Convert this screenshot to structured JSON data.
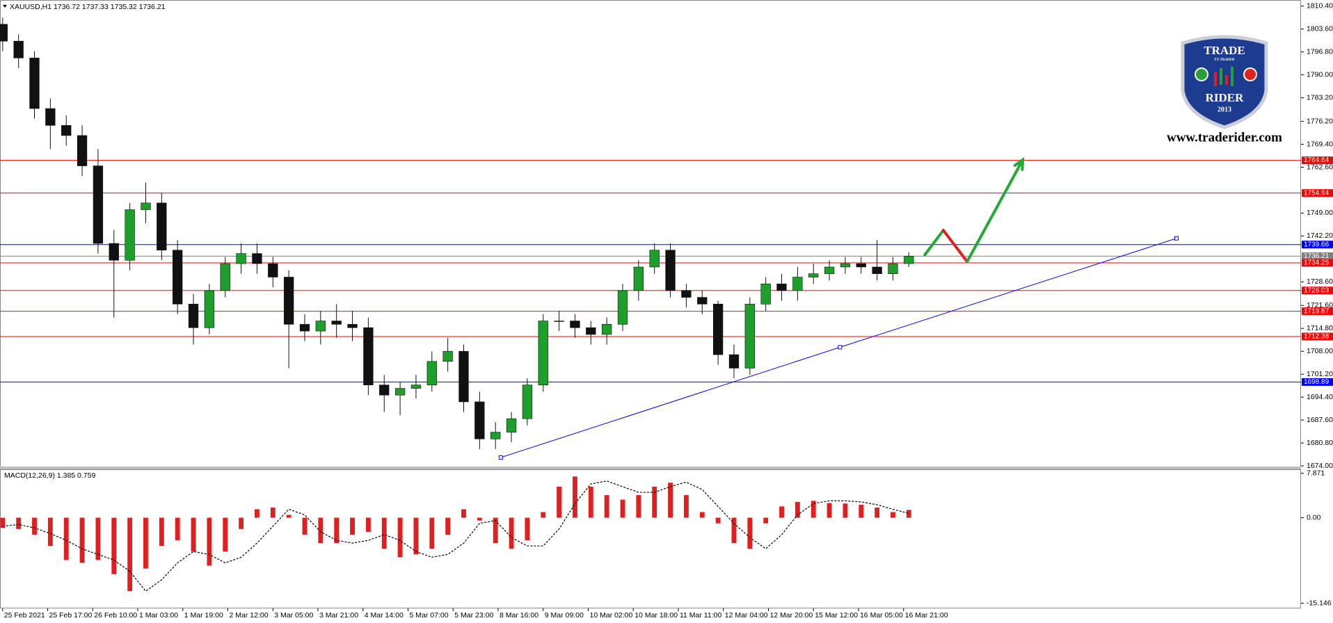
{
  "chart_data": [
    {
      "type": "candlestick",
      "title": "XAUUSD,H1  1736.72 1737.33 1735.32 1736.21",
      "x": [
        0,
        6,
        12,
        18,
        24,
        30,
        36,
        42,
        48,
        54,
        60,
        66,
        72,
        78,
        84,
        90,
        96,
        102,
        108,
        114,
        120,
        126,
        132,
        138,
        144,
        150,
        156,
        162,
        168,
        174,
        180,
        186,
        192,
        198,
        204,
        210,
        216,
        222,
        228,
        234,
        240,
        246,
        252,
        258,
        264,
        270,
        276,
        282,
        288,
        294,
        300,
        306,
        312,
        318,
        324,
        330,
        336,
        342
      ],
      "open": [
        1805,
        1800,
        1795,
        1780,
        1775,
        1772,
        1763,
        1740,
        1735,
        1750,
        1752,
        1738,
        1722,
        1715,
        1726,
        1734,
        1737,
        1734,
        1730,
        1716,
        1714,
        1717,
        1716,
        1715,
        1698,
        1695,
        1697,
        1698,
        1705,
        1708,
        1693,
        1682,
        1684,
        1688,
        1698,
        1717,
        1717,
        1715,
        1713,
        1716,
        1726,
        1733,
        1738,
        1726,
        1724,
        1722,
        1707,
        1703,
        1722,
        1728,
        1726,
        1730,
        1731,
        1733,
        1734,
        1733,
        1731,
        1734
      ],
      "high": [
        1807,
        1802,
        1797,
        1783,
        1778,
        1775,
        1768,
        1744,
        1752,
        1758,
        1755,
        1741,
        1725,
        1728,
        1736,
        1740,
        1740,
        1736,
        1732,
        1719,
        1720,
        1722,
        1720,
        1718,
        1701,
        1699,
        1701,
        1708,
        1712,
        1710,
        1696,
        1687,
        1690,
        1700,
        1719,
        1720,
        1719,
        1717,
        1718,
        1728,
        1735,
        1740,
        1740,
        1728,
        1726,
        1723,
        1710,
        1724,
        1730,
        1731,
        1733,
        1734,
        1735,
        1736,
        1736,
        1741,
        1736,
        1737.33
      ],
      "low": [
        1797,
        1792,
        1777,
        1768,
        1769,
        1760,
        1737,
        1718,
        1732,
        1746,
        1735,
        1719,
        1710,
        1713,
        1724,
        1731,
        1731,
        1727,
        1703,
        1711,
        1710,
        1712,
        1711,
        1695,
        1690,
        1689,
        1694,
        1696,
        1702,
        1690,
        1679,
        1679,
        1681,
        1686,
        1696,
        1714,
        1712,
        1710,
        1710,
        1714,
        1723,
        1731,
        1724,
        1721,
        1719,
        1704,
        1700,
        1701,
        1720,
        1723,
        1723,
        1728,
        1729,
        1731,
        1731,
        1729,
        1729,
        1733
      ],
      "close": [
        1800,
        1795,
        1780,
        1775,
        1772,
        1763,
        1740,
        1735,
        1750,
        1752,
        1738,
        1722,
        1715,
        1726,
        1734,
        1737,
        1734,
        1730,
        1716,
        1714,
        1717,
        1716,
        1715,
        1698,
        1695,
        1697,
        1698,
        1705,
        1708,
        1693,
        1682,
        1684,
        1688,
        1698,
        1717,
        1717,
        1715,
        1713,
        1716,
        1726,
        1733,
        1738,
        1726,
        1724,
        1722,
        1707,
        1703,
        1722,
        1728,
        1726,
        1730,
        1731,
        1733,
        1734,
        1733,
        1731,
        1734,
        1736.21
      ],
      "up_color": "#1e9e2a",
      "down_color": "#111111",
      "xlim": [
        -1,
        490
      ],
      "ylim": [
        1673.6,
        1812.2
      ],
      "yticks": [
        {
          "value": 1810.4,
          "label": "1810.40"
        },
        {
          "value": 1803.6,
          "label": "1803.60"
        },
        {
          "value": 1796.8,
          "label": "1796.80"
        },
        {
          "value": 1790,
          "label": "1790.00"
        },
        {
          "value": 1783.2,
          "label": "1783.20"
        },
        {
          "value": 1776.2,
          "label": "1776.20"
        },
        {
          "value": 1769.4,
          "label": "1769.40"
        },
        {
          "value": 1762.6,
          "label": "1762.60"
        },
        {
          "value": 1749,
          "label": "1749.00"
        },
        {
          "value": 1742.2,
          "label": "1742.20"
        },
        {
          "value": 1728.6,
          "label": "1728.60"
        },
        {
          "value": 1721.6,
          "label": "1721.60"
        },
        {
          "value": 1714.8,
          "label": "1714.80"
        },
        {
          "value": 1708,
          "label": "1708.00"
        },
        {
          "value": 1701.2,
          "label": "1701.20"
        },
        {
          "value": 1694.4,
          "label": "1694.40"
        },
        {
          "value": 1687.6,
          "label": "1687.60"
        },
        {
          "value": 1680.8,
          "label": "1680.80"
        },
        {
          "value": 1674,
          "label": "1674.00"
        }
      ],
      "levels": [
        {
          "value": 1764.64,
          "color": "#ff0000"
        },
        {
          "value": 1754.94,
          "color": "#ff0000"
        },
        {
          "value": 1739.66,
          "color": "#0000ff"
        },
        {
          "value": 1736.21,
          "color": "#808080"
        },
        {
          "value": 1734.25,
          "color": "#ff0000"
        },
        {
          "value": 1726.03,
          "color": "#ff0000"
        },
        {
          "value": 1719.87,
          "color": "#ff0000"
        },
        {
          "value": 1712.38,
          "color": "#ff0000"
        },
        {
          "value": 1698.89,
          "color": "#0000ff"
        }
      ],
      "trendline": {
        "x": [
          188,
          316,
          443
        ],
        "y": [
          1676.5,
          1709.2,
          1741.5
        ],
        "color": "#0000ff"
      },
      "projection": {
        "x": [
          348,
          355,
          364,
          385
        ],
        "y": [
          1736.6,
          1743.9,
          1734.6,
          1764.8
        ],
        "colors": [
          "#22aa33",
          "#e02020",
          "#22aa33"
        ]
      },
      "logo": {
        "top": "TRADE",
        "tag": "FX TRADER",
        "name": "RIDER",
        "year": "2013",
        "site": "www.traderider.com"
      }
    },
    {
      "type": "macd",
      "title": "MACD(12,26,9) 1.385 0.759",
      "x": [
        0,
        6,
        12,
        18,
        24,
        30,
        36,
        42,
        48,
        54,
        60,
        66,
        72,
        78,
        84,
        90,
        96,
        102,
        108,
        114,
        120,
        126,
        132,
        138,
        144,
        150,
        156,
        162,
        168,
        174,
        180,
        186,
        192,
        198,
        204,
        210,
        216,
        222,
        228,
        234,
        240,
        246,
        252,
        258,
        264,
        270,
        276,
        282,
        288,
        294,
        300,
        306,
        312,
        318,
        324,
        330,
        336,
        342
      ],
      "series": [
        {
          "name": "MACD",
          "color": "#e02020",
          "values": [
            -1.8,
            -2,
            -3,
            -5,
            -7.5,
            -8,
            -7.5,
            -10,
            -13,
            -9,
            -5,
            -4,
            -6,
            -8.5,
            -6,
            -2,
            1.5,
            1.8,
            0.5,
            -3,
            -4.5,
            -4.5,
            -3,
            -2.5,
            -5.5,
            -7,
            -6.5,
            -5.5,
            -3,
            1.5,
            -0.5,
            -4.5,
            -5.5,
            -4,
            1,
            5.5,
            7.3,
            5.5,
            4,
            3.2,
            4,
            5.5,
            6.2,
            4,
            1,
            -1,
            -4.5,
            -5.5,
            -1,
            2,
            2.8,
            3,
            2.6,
            2.5,
            2.3,
            1.8,
            1,
            1.385
          ]
        },
        {
          "name": "Signal",
          "color": "#000000",
          "values": [
            -1.5,
            -1.2,
            -1.8,
            -2.8,
            -4,
            -5.5,
            -6.5,
            -7.5,
            -9.5,
            -13,
            -11,
            -8,
            -6,
            -6.5,
            -8,
            -7,
            -4.5,
            -1.5,
            1.5,
            0.5,
            -2.5,
            -4,
            -4.5,
            -4,
            -3,
            -4,
            -6,
            -7,
            -6.5,
            -4.5,
            -1,
            -0.5,
            -3.5,
            -5,
            -5,
            -2,
            2.5,
            6,
            6.5,
            5.5,
            4.5,
            4.5,
            5.5,
            6.3,
            5,
            2,
            -1,
            -3.5,
            -5.5,
            -3,
            0.5,
            2.5,
            3,
            3,
            2.8,
            2.3,
            1.5,
            0.759
          ]
        }
      ],
      "xlim": [
        -1,
        490
      ],
      "ylim": [
        -16.06,
        8.57
      ],
      "yticks": [
        7.871,
        {
          "value": 0,
          "label": "0.00"
        },
        -15.146
      ],
      "xticks": [
        {
          "value": 0,
          "label": "25 Feb 2021"
        },
        {
          "value": 17,
          "label": "25 Feb 17:00"
        },
        {
          "value": 34,
          "label": "26 Feb 10:00"
        },
        {
          "value": 51,
          "label": "1 Mar 03:00"
        },
        {
          "value": 68,
          "label": "1 Mar 19:00"
        },
        {
          "value": 85,
          "label": "2 Mar 12:00"
        },
        {
          "value": 102,
          "label": "3 Mar 05:00"
        },
        {
          "value": 119,
          "label": "3 Mar 21:00"
        },
        {
          "value": 136,
          "label": "4 Mar 14:00"
        },
        {
          "value": 153,
          "label": "5 Mar 07:00"
        },
        {
          "value": 170,
          "label": "5 Mar 23:00"
        },
        {
          "value": 187,
          "label": "8 Mar 16:00"
        },
        {
          "value": 204,
          "label": "9 Mar 09:00"
        },
        {
          "value": 221,
          "label": "10 Mar 02:00"
        },
        {
          "value": 238,
          "label": "10 Mar 18:00"
        },
        {
          "value": 255,
          "label": "11 Mar 11:00"
        },
        {
          "value": 272,
          "label": "12 Mar 04:00"
        },
        {
          "value": 289,
          "label": "12 Mar 20:00"
        },
        {
          "value": 306,
          "label": "15 Mar 12:00"
        },
        {
          "value": 323,
          "label": "16 Mar 05:00"
        },
        {
          "value": 340,
          "label": "16 Mar 21:00"
        }
      ]
    }
  ]
}
